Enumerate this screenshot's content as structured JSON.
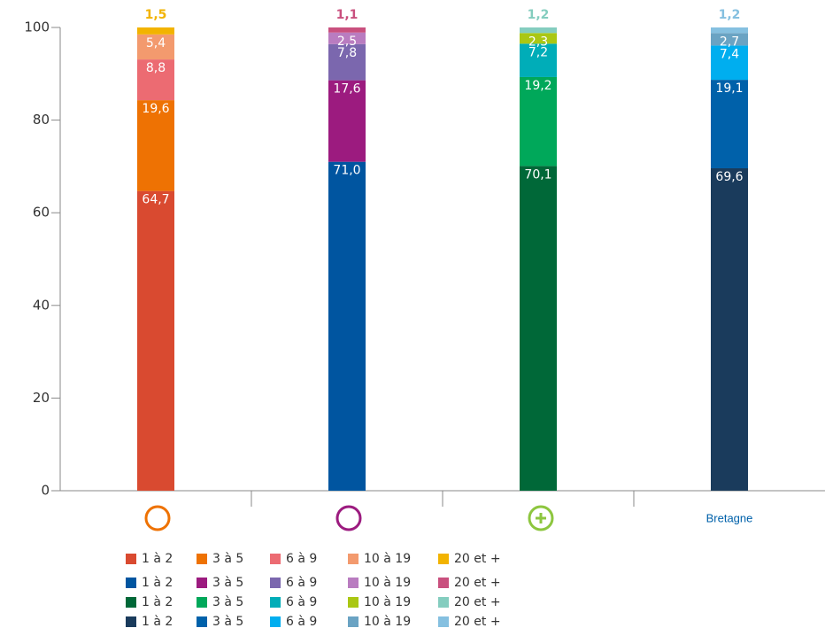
{
  "chart_data": {
    "type": "stacked_bar",
    "categories": [
      null,
      null,
      null,
      "Bretagne"
    ],
    "series": [
      {
        "name": "1 à 2",
        "colors": [
          "#d94a30",
          "#0055a0",
          "#006838",
          "#1a3b5c"
        ],
        "values": [
          64.7,
          71.0,
          70.1,
          69.6
        ],
        "value_labels": [
          "64,7",
          "71,0",
          "70,1",
          "69,6"
        ]
      },
      {
        "name": "3 à 5",
        "colors": [
          "#ee7203",
          "#9c1b7f",
          "#00a85a",
          "#0061aa"
        ],
        "values": [
          19.6,
          17.6,
          19.2,
          19.1
        ],
        "value_labels": [
          "19,6",
          "17,6",
          "19,2",
          "19,1"
        ]
      },
      {
        "name": "6 à 9",
        "colors": [
          "#ec6b72",
          "#7b67ae",
          "#00adb8",
          "#00aeef"
        ],
        "values": [
          8.8,
          7.8,
          7.2,
          7.4
        ],
        "value_labels": [
          "8,8",
          "7,8",
          "7,2",
          "7,4"
        ]
      },
      {
        "name": "10 à 19",
        "colors": [
          "#f39a6e",
          "#b97cc0",
          "#aac713",
          "#6aa3c3"
        ],
        "values": [
          5.4,
          2.5,
          2.3,
          2.7
        ],
        "value_labels": [
          "5,4",
          "2,5",
          "2,3",
          "2,7"
        ]
      },
      {
        "name": "20 et +",
        "colors": [
          "#f2b300",
          "#c9507e",
          "#84cdbf",
          "#85c0e0"
        ],
        "values": [
          1.5,
          1.1,
          1.2,
          1.2
        ],
        "value_labels": [
          "1,5",
          "1,1",
          "1,2",
          "1,2"
        ]
      }
    ],
    "ylim": [
      0,
      100
    ],
    "yticks": [
      0,
      20,
      40,
      60,
      80,
      100
    ],
    "grid": false
  }
}
